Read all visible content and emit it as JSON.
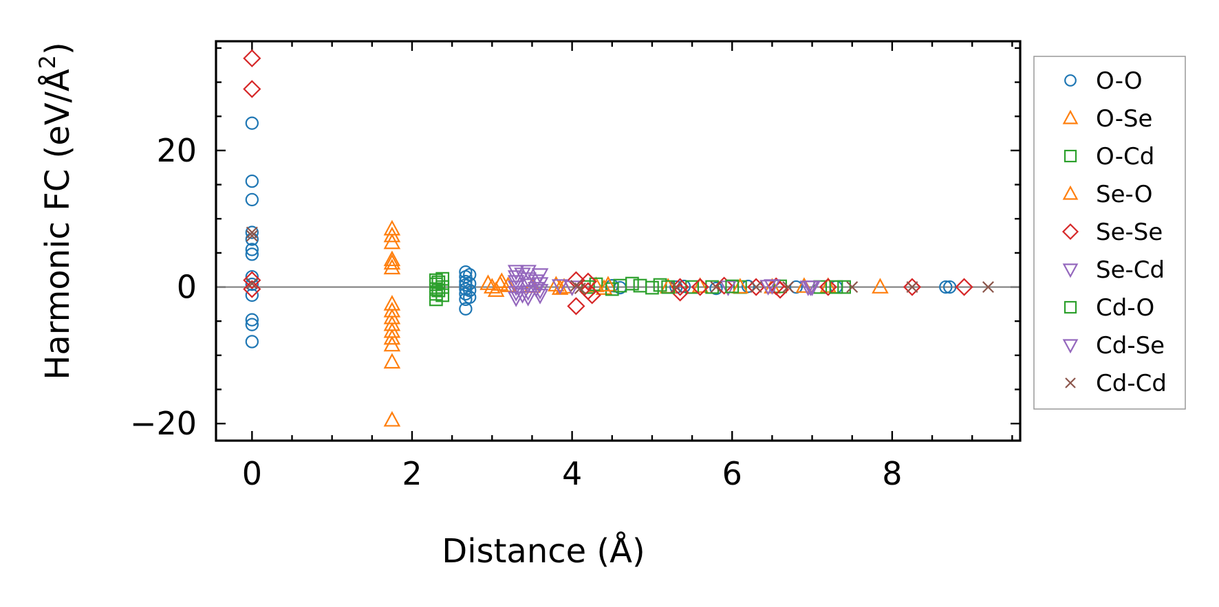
{
  "chart_data": {
    "type": "scatter",
    "title": "",
    "xlabel": "Distance (Å)",
    "ylabel_prefix": "Harmonic FC (eV/Å",
    "ylabel_sup": "2",
    "ylabel_suffix": ")",
    "xlim": [
      -0.45,
      9.6
    ],
    "ylim": [
      -22.5,
      36
    ],
    "xticks": [
      0,
      2,
      4,
      6,
      8
    ],
    "xtick_labels": [
      "0",
      "2",
      "4",
      "6",
      "8"
    ],
    "yticks": [
      -20,
      0,
      20
    ],
    "ytick_labels": [
      "−20",
      "0",
      "20"
    ],
    "x_minor_step": 0.5,
    "y_minor_step": 5,
    "zero_line": true,
    "grid": false,
    "legend_position": "right",
    "series": [
      {
        "name": "O-O",
        "marker": "circle",
        "color": "#1f77b4",
        "points": [
          [
            0,
            24
          ],
          [
            0,
            15.5
          ],
          [
            0,
            12.8
          ],
          [
            0,
            8
          ],
          [
            0,
            7
          ],
          [
            0,
            5.5
          ],
          [
            0,
            4.8
          ],
          [
            0,
            1.5
          ],
          [
            0,
            0.4
          ],
          [
            0,
            -1.2
          ],
          [
            0,
            -4.8
          ],
          [
            0,
            -5.5
          ],
          [
            0,
            -8
          ],
          [
            2.67,
            2.2
          ],
          [
            2.67,
            1.5
          ],
          [
            2.67,
            0.8
          ],
          [
            2.67,
            0.3
          ],
          [
            2.67,
            -0.3
          ],
          [
            2.67,
            -1
          ],
          [
            2.67,
            -1.8
          ],
          [
            2.67,
            -3.2
          ],
          [
            2.72,
            1.8
          ],
          [
            2.72,
            0.5
          ],
          [
            2.72,
            -0.5
          ],
          [
            2.72,
            -1.5
          ],
          [
            4.5,
            0.2
          ],
          [
            4.6,
            -0.1
          ],
          [
            5.3,
            0
          ],
          [
            5.4,
            0.1
          ],
          [
            5.8,
            -0.2
          ],
          [
            6.2,
            0.1
          ],
          [
            6.8,
            0
          ],
          [
            7.3,
            0
          ],
          [
            8.67,
            0
          ],
          [
            8.72,
            0
          ]
        ]
      },
      {
        "name": "O-Se",
        "marker": "triangle-up",
        "color": "#ff7f0e",
        "points": [
          [
            1.75,
            8.5
          ],
          [
            1.75,
            7.5
          ],
          [
            1.75,
            6.5
          ],
          [
            1.75,
            4
          ],
          [
            1.75,
            3.5
          ],
          [
            1.75,
            2.8
          ],
          [
            1.75,
            -2.5
          ],
          [
            1.75,
            -3.5
          ],
          [
            1.75,
            -4.5
          ],
          [
            1.75,
            -5.5
          ],
          [
            1.75,
            -6.5
          ],
          [
            1.75,
            -7.5
          ],
          [
            1.75,
            -8.5
          ],
          [
            1.75,
            -11
          ],
          [
            1.75,
            -19.5
          ],
          [
            2.95,
            0.5
          ],
          [
            3,
            0
          ],
          [
            3.05,
            -0.5
          ],
          [
            3.12,
            0.8
          ],
          [
            3.2,
            0.2
          ],
          [
            3.8,
            0.3
          ],
          [
            3.9,
            0
          ],
          [
            4.3,
            0.2
          ],
          [
            4.4,
            -0.2
          ],
          [
            5.6,
            0.1
          ],
          [
            6.5,
            0
          ],
          [
            7.2,
            0.1
          ],
          [
            7.85,
            0
          ]
        ]
      },
      {
        "name": "O-Cd",
        "marker": "square",
        "color": "#2ca02c",
        "points": [
          [
            2.3,
            1
          ],
          [
            2.3,
            0.4
          ],
          [
            2.3,
            -0.3
          ],
          [
            2.3,
            -1
          ],
          [
            2.3,
            -1.8
          ],
          [
            2.38,
            1.2
          ],
          [
            2.38,
            0
          ],
          [
            2.38,
            -1.2
          ],
          [
            4.2,
            0
          ],
          [
            4.3,
            0.4
          ],
          [
            4.5,
            -0.3
          ],
          [
            4.75,
            0.5
          ],
          [
            4.85,
            0.2
          ],
          [
            5,
            -0.1
          ],
          [
            5.1,
            0.3
          ],
          [
            5.5,
            0
          ],
          [
            5.75,
            0
          ],
          [
            6.1,
            0
          ],
          [
            6.6,
            0.1
          ],
          [
            7.1,
            0
          ],
          [
            7.4,
            0
          ]
        ]
      },
      {
        "name": "Se-O",
        "marker": "triangle-up",
        "color": "#ff7f0e",
        "points": [
          [
            3.1,
            0.4
          ],
          [
            3.5,
            0.1
          ],
          [
            3.85,
            -0.2
          ],
          [
            4.45,
            0.3
          ],
          [
            5.2,
            0
          ],
          [
            6.1,
            0
          ],
          [
            6.9,
            0.1
          ]
        ]
      },
      {
        "name": "Se-Se",
        "marker": "diamond",
        "color": "#d62728",
        "points": [
          [
            0,
            33.5
          ],
          [
            0,
            29
          ],
          [
            0,
            1
          ],
          [
            0,
            -0.3
          ],
          [
            4.05,
            1
          ],
          [
            4.05,
            -2.8
          ],
          [
            4.2,
            0.8
          ],
          [
            4.2,
            -0.6
          ],
          [
            4.25,
            -1.2
          ],
          [
            5.35,
            -0.8
          ],
          [
            5.35,
            0
          ],
          [
            5.6,
            0
          ],
          [
            5.9,
            0.2
          ],
          [
            6.3,
            0
          ],
          [
            6.55,
            0.1
          ],
          [
            6.6,
            -0.4
          ],
          [
            7.2,
            0
          ],
          [
            8.25,
            0
          ],
          [
            8.9,
            0
          ]
        ]
      },
      {
        "name": "Se-Cd",
        "marker": "triangle-down",
        "color": "#9467bd",
        "points": [
          [
            3.3,
            2.3
          ],
          [
            3.3,
            1.5
          ],
          [
            3.3,
            0.8
          ],
          [
            3.3,
            0
          ],
          [
            3.3,
            -0.8
          ],
          [
            3.3,
            -1.6
          ],
          [
            3.45,
            2.3
          ],
          [
            3.45,
            1.2
          ],
          [
            3.45,
            0.3
          ],
          [
            3.45,
            -0.7
          ],
          [
            3.45,
            -1.5
          ],
          [
            3.6,
            1.8
          ],
          [
            3.6,
            0.5
          ],
          [
            3.6,
            -0.5
          ],
          [
            3.6,
            -1.2
          ],
          [
            3.85,
            0.2
          ],
          [
            4.0,
            0
          ],
          [
            5.95,
            0
          ],
          [
            6.5,
            0.2
          ],
          [
            6.95,
            0
          ],
          [
            7.0,
            0
          ]
        ]
      },
      {
        "name": "Cd-O",
        "marker": "square",
        "color": "#2ca02c",
        "points": [
          [
            2.33,
            0.7
          ],
          [
            2.33,
            -0.5
          ],
          [
            4.6,
            0.2
          ],
          [
            5.2,
            0
          ],
          [
            6.0,
            0.1
          ],
          [
            7.3,
            0
          ]
        ]
      },
      {
        "name": "Cd-Se",
        "marker": "triangle-down",
        "color": "#9467bd",
        "points": [
          [
            3.38,
            1.9
          ],
          [
            3.38,
            -1.1
          ],
          [
            3.55,
            0.9
          ],
          [
            3.55,
            -0.2
          ],
          [
            6.45,
            0.1
          ],
          [
            6.98,
            0
          ]
        ]
      },
      {
        "name": "Cd-Cd",
        "marker": "x",
        "color": "#8c564b",
        "points": [
          [
            0,
            8
          ],
          [
            0,
            7.5
          ],
          [
            0,
            0.5
          ],
          [
            4.05,
            0.2
          ],
          [
            4.1,
            -0.2
          ],
          [
            5.3,
            0
          ],
          [
            5.8,
            0
          ],
          [
            6.3,
            0
          ],
          [
            6.7,
            0
          ],
          [
            7.5,
            0
          ],
          [
            8.25,
            0
          ],
          [
            9.2,
            0
          ]
        ]
      }
    ]
  }
}
